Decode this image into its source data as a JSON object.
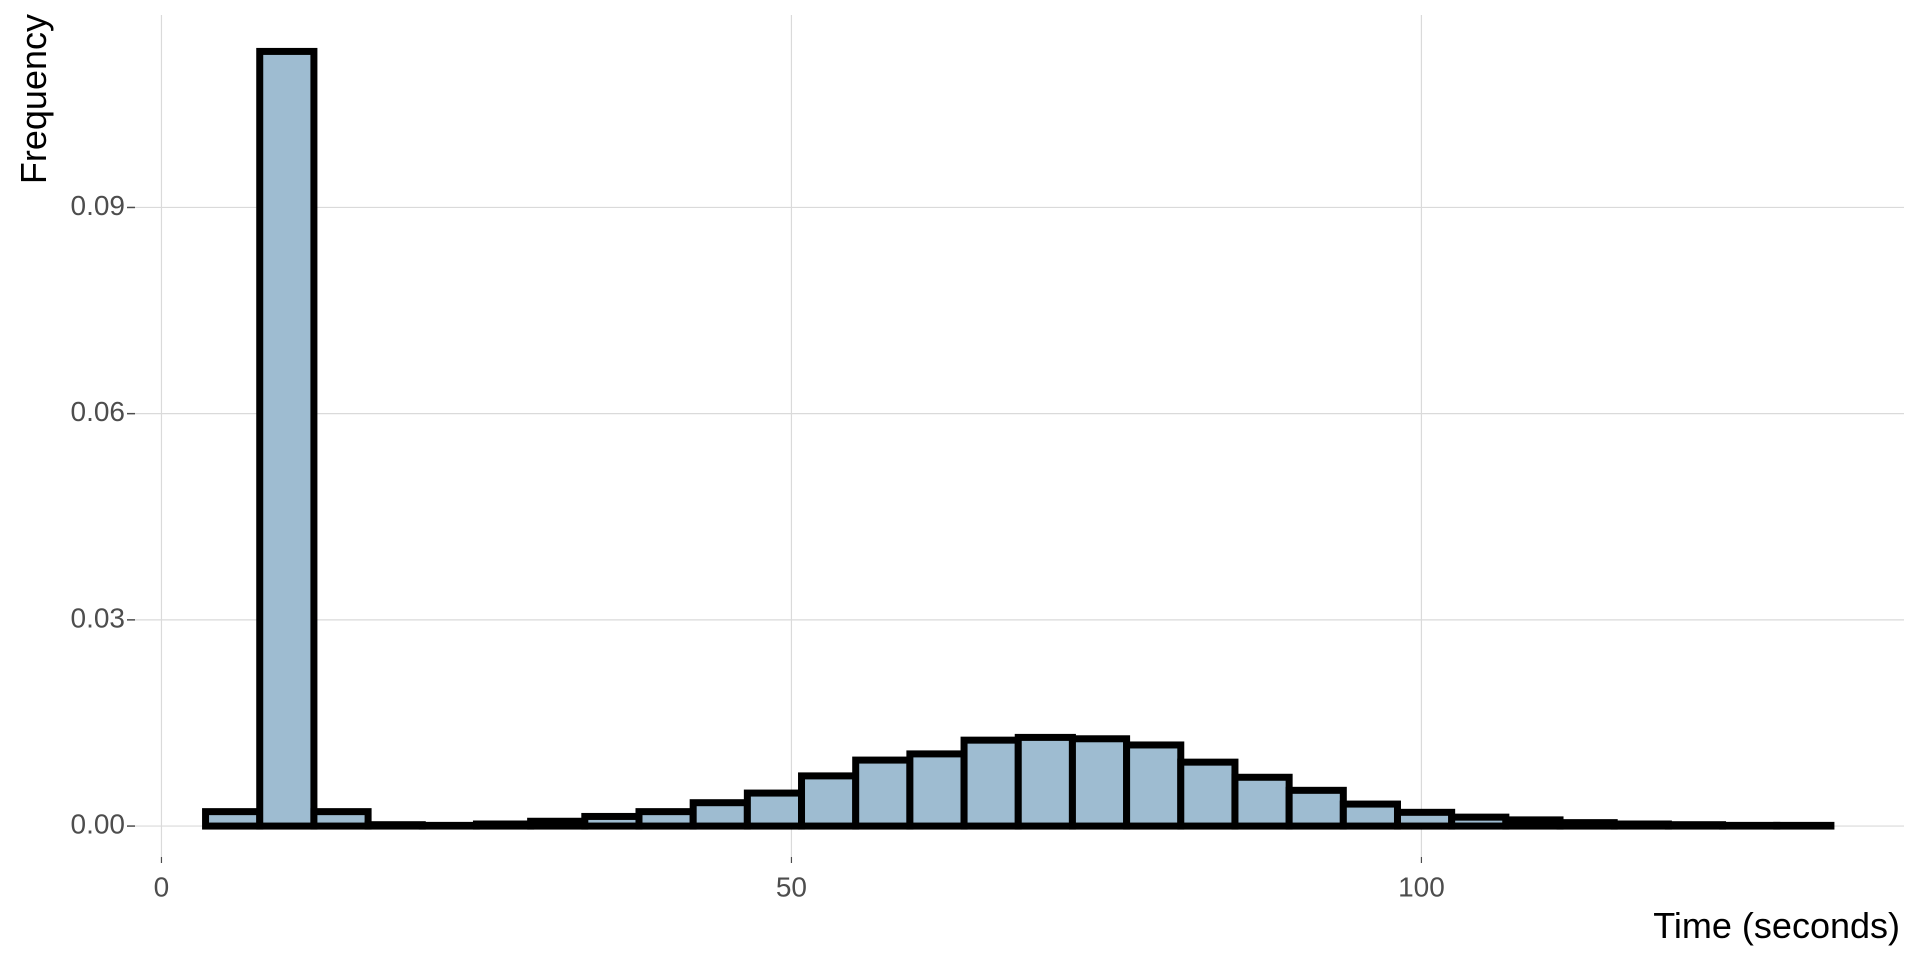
{
  "chart_data": {
    "type": "histogram",
    "x_label": "Time (seconds)",
    "y_label": "Frequency",
    "bins": [
      3.5,
      7.8,
      12.1,
      16.4,
      20.7,
      25,
      29.3,
      33.6,
      37.9,
      42.2,
      46.5,
      50.8,
      55.1,
      59.4,
      63.7,
      68,
      72.3,
      76.6,
      80.9,
      85.2,
      89.5,
      93.8,
      98.1,
      102.4,
      106.7,
      111,
      115.3,
      119.6,
      123.9,
      128.2,
      132.5
    ],
    "values": [
      0.0021,
      0.1127,
      0.0021,
      0.0002,
      0.0001,
      0.0003,
      0.0007,
      0.0014,
      0.0021,
      0.0034,
      0.0048,
      0.0073,
      0.0096,
      0.0105,
      0.0125,
      0.0129,
      0.0127,
      0.0118,
      0.0093,
      0.0071,
      0.0052,
      0.0032,
      0.002,
      0.0013,
      0.0009,
      0.0005,
      0.0003,
      0.0002,
      0.0001,
      0.0001
    ],
    "color": "#9ebcd1",
    "edge_color": "#000000",
    "xlim": [
      -2.1,
      138.3
    ],
    "ylim": [
      -0.0045,
      0.118
    ],
    "xticks": [
      0,
      50,
      100
    ],
    "yticks": [
      {
        "value": 0,
        "label": "0.00"
      },
      {
        "value": 0.03,
        "label": "0.03"
      },
      {
        "value": 0.06,
        "label": "0.06"
      },
      {
        "value": 0.09,
        "label": "0.09"
      }
    ],
    "grid": true
  }
}
